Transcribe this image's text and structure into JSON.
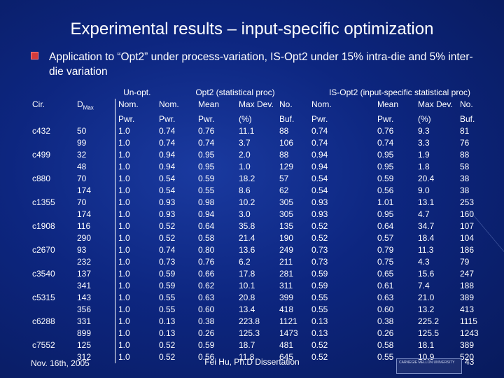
{
  "title": "Experimental results – input-specific optimization",
  "bullet": "Application to “Opt2” under process-variation, IS-Opt2 under 15% intra-die and 5% inter-die variation",
  "groups": {
    "unopt": "Un-opt.",
    "opt2": "Opt2 (statistical proc)",
    "isopt2": "IS-Opt2 (input-specific statistical proc)"
  },
  "headers": {
    "cir": "Cir.",
    "dmax": "D",
    "dmax_sub": "Max",
    "h1a": "Nom.",
    "h1b": "Pwr.",
    "h2a": "Nom.",
    "h2b": "Pwr.",
    "h3a": "Mean",
    "h3b": "Pwr.",
    "h4a": "Max Dev.",
    "h4b": "(%)",
    "h5a": "No.",
    "h5b": "Buf.",
    "h6a": "Nom.",
    "h6b": "Pwr.",
    "h7a": "Mean",
    "h7b": "Pwr.",
    "h8a": "Max Dev.",
    "h8b": "(%)",
    "h9a": "No.",
    "h9b": "Buf."
  },
  "rows": [
    [
      "c432",
      "50",
      "1.0",
      "0.74",
      "0.76",
      "11.1",
      "88",
      "0.74",
      "0.76",
      "9.3",
      "81"
    ],
    [
      "",
      "99",
      "1.0",
      "0.74",
      "0.74",
      "3.7",
      "106",
      "0.74",
      "0.74",
      "3.3",
      "76"
    ],
    [
      "c499",
      "32",
      "1.0",
      "0.94",
      "0.95",
      "2.0",
      "88",
      "0.94",
      "0.95",
      "1.9",
      "88"
    ],
    [
      "",
      "48",
      "1.0",
      "0.94",
      "0.95",
      "1.0",
      "129",
      "0.94",
      "0.95",
      "1.8",
      "58"
    ],
    [
      "c880",
      "70",
      "1.0",
      "0.54",
      "0.59",
      "18.2",
      "57",
      "0.54",
      "0.59",
      "20.4",
      "38"
    ],
    [
      "",
      "174",
      "1.0",
      "0.54",
      "0.55",
      "8.6",
      "62",
      "0.54",
      "0.56",
      "9.0",
      "38"
    ],
    [
      "c1355",
      "70",
      "1.0",
      "0.93",
      "0.98",
      "10.2",
      "305",
      "0.93",
      "1.01",
      "13.1",
      "253"
    ],
    [
      "",
      "174",
      "1.0",
      "0.93",
      "0.94",
      "3.0",
      "305",
      "0.93",
      "0.95",
      "4.7",
      "160"
    ],
    [
      "c1908",
      "116",
      "1.0",
      "0.52",
      "0.64",
      "35.8",
      "135",
      "0.52",
      "0.64",
      "34.7",
      "107"
    ],
    [
      "",
      "290",
      "1.0",
      "0.52",
      "0.58",
      "21.4",
      "190",
      "0.52",
      "0.57",
      "18.4",
      "104"
    ],
    [
      "c2670",
      "93",
      "1.0",
      "0.74",
      "0.80",
      "13.6",
      "249",
      "0.73",
      "0.79",
      "11.3",
      "186"
    ],
    [
      "",
      "232",
      "1.0",
      "0.73",
      "0.76",
      "6.2",
      "211",
      "0.73",
      "0.75",
      "4.3",
      "79"
    ],
    [
      "c3540",
      "137",
      "1.0",
      "0.59",
      "0.66",
      "17.8",
      "281",
      "0.59",
      "0.65",
      "15.6",
      "247"
    ],
    [
      "",
      "341",
      "1.0",
      "0.59",
      "0.62",
      "10.1",
      "311",
      "0.59",
      "0.61",
      "7.4",
      "188"
    ],
    [
      "c5315",
      "143",
      "1.0",
      "0.55",
      "0.63",
      "20.8",
      "399",
      "0.55",
      "0.63",
      "21.0",
      "389"
    ],
    [
      "",
      "356",
      "1.0",
      "0.55",
      "0.60",
      "13.4",
      "418",
      "0.55",
      "0.60",
      "13.2",
      "413"
    ],
    [
      "c6288",
      "331",
      "1.0",
      "0.13",
      "0.38",
      "223.8",
      "1121",
      "0.13",
      "0.38",
      "225.2",
      "1115"
    ],
    [
      "",
      "899",
      "1.0",
      "0.13",
      "0.26",
      "125.3",
      "1473",
      "0.13",
      "0.26",
      "125.5",
      "1243"
    ],
    [
      "c7552",
      "125",
      "1.0",
      "0.52",
      "0.59",
      "18.7",
      "481",
      "0.52",
      "0.58",
      "18.1",
      "389"
    ],
    [
      "",
      "312",
      "1.0",
      "0.52",
      "0.56",
      "11.8",
      "645",
      "0.52",
      "0.55",
      "10.9",
      "520"
    ]
  ],
  "footer": {
    "date": "Nov. 16th, 2005",
    "author": "Fei Hu, Ph.D Dissertation",
    "page": "43"
  },
  "logo_text": "CARNEGIE MELLON UNIVERSITY"
}
